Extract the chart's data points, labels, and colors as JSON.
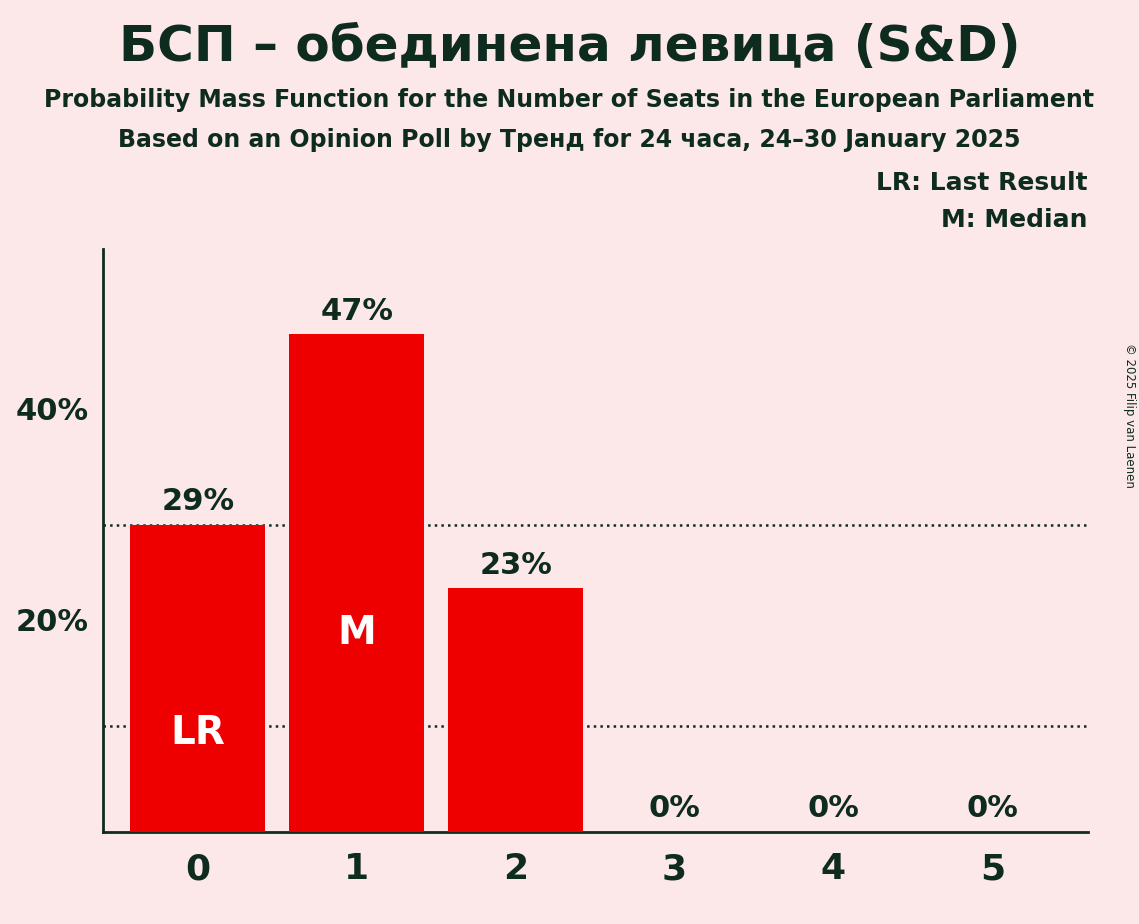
{
  "title": "БСП – обединена левица (S&D)",
  "subtitle": "Probability Mass Function for the Number of Seats in the European Parliament",
  "subsubtitle": "Based on an Opinion Poll by Тренд for 24 часа, 24–30 January 2025",
  "categories": [
    0,
    1,
    2,
    3,
    4,
    5
  ],
  "values": [
    0.29,
    0.47,
    0.23,
    0.0,
    0.0,
    0.0
  ],
  "bar_color": "#ee0000",
  "background_color": "#fce8e8",
  "text_color": "#0d2b1e",
  "lr_seat": 0,
  "median_seat": 1,
  "dotted_lines": [
    0.29,
    0.1
  ],
  "yticks": [
    0.0,
    0.2,
    0.4
  ],
  "ytick_labels": [
    "",
    "20%",
    "40%"
  ],
  "copyright_text": "© 2025 Filip van Laenen",
  "legend_lr": "LR: Last Result",
  "legend_m": "M: Median",
  "ylim": [
    0,
    0.55
  ]
}
